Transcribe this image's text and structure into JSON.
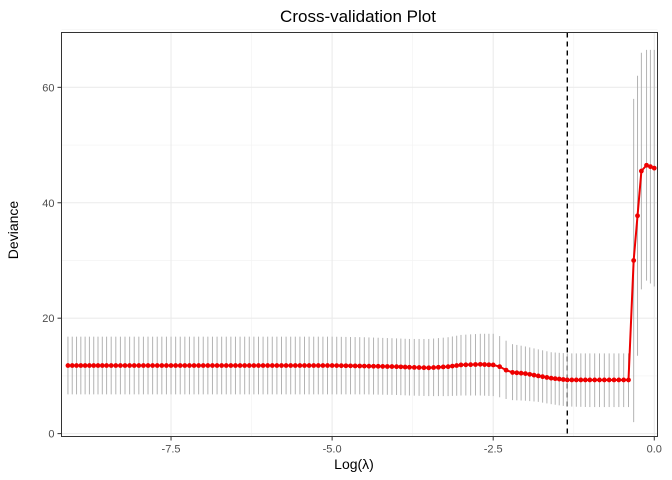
{
  "chart_data": {
    "type": "line",
    "title": "Cross-validation Plot",
    "xlabel": "Log(λ)",
    "ylabel": "Deviance",
    "xlim": [
      -9.2,
      0.05
    ],
    "ylim": [
      -0.5,
      69.5
    ],
    "x_ticks": [
      -7.5,
      -5.0,
      -2.5,
      0.0
    ],
    "x_tick_labels": [
      "-7.5",
      "-5.0",
      "-2.5",
      "0.0"
    ],
    "y_ticks": [
      0,
      20,
      40,
      60
    ],
    "y_tick_labels": [
      "0",
      "20",
      "40",
      "60"
    ],
    "grid": true,
    "vline": {
      "x": -1.35,
      "style": "dashed"
    },
    "series": [
      {
        "color": "#ee0000",
        "error_bar_color": "#b3b3b3",
        "points": [
          {
            "x": -9.1,
            "y": 11.8,
            "lo": 6.8,
            "hi": 16.8
          },
          {
            "x": -8.5,
            "y": 11.8,
            "lo": 6.8,
            "hi": 16.8
          },
          {
            "x": -8.0,
            "y": 11.8,
            "lo": 6.8,
            "hi": 16.8
          },
          {
            "x": -7.5,
            "y": 11.8,
            "lo": 6.8,
            "hi": 16.8
          },
          {
            "x": -7.0,
            "y": 11.8,
            "lo": 6.8,
            "hi": 16.8
          },
          {
            "x": -6.5,
            "y": 11.8,
            "lo": 6.8,
            "hi": 16.8
          },
          {
            "x": -6.0,
            "y": 11.8,
            "lo": 6.8,
            "hi": 16.8
          },
          {
            "x": -5.5,
            "y": 11.8,
            "lo": 6.8,
            "hi": 16.8
          },
          {
            "x": -5.0,
            "y": 11.8,
            "lo": 6.8,
            "hi": 16.8
          },
          {
            "x": -4.5,
            "y": 11.7,
            "lo": 6.8,
            "hi": 16.7
          },
          {
            "x": -4.0,
            "y": 11.6,
            "lo": 6.7,
            "hi": 16.5
          },
          {
            "x": -3.8,
            "y": 11.5,
            "lo": 6.6,
            "hi": 16.4
          },
          {
            "x": -3.5,
            "y": 11.4,
            "lo": 6.5,
            "hi": 16.4
          },
          {
            "x": -3.2,
            "y": 11.6,
            "lo": 6.5,
            "hi": 16.7
          },
          {
            "x": -3.0,
            "y": 11.9,
            "lo": 6.6,
            "hi": 17.1
          },
          {
            "x": -2.7,
            "y": 12.0,
            "lo": 6.6,
            "hi": 17.3
          },
          {
            "x": -2.5,
            "y": 11.9,
            "lo": 6.5,
            "hi": 17.3
          },
          {
            "x": -2.4,
            "y": 11.6,
            "lo": 6.3,
            "hi": 16.9
          },
          {
            "x": -2.3,
            "y": 11.0,
            "lo": 6.0,
            "hi": 16.1
          },
          {
            "x": -2.2,
            "y": 10.6,
            "lo": 5.8,
            "hi": 15.5
          },
          {
            "x": -2.0,
            "y": 10.4,
            "lo": 5.7,
            "hi": 15.1
          },
          {
            "x": -1.8,
            "y": 10.0,
            "lo": 5.5,
            "hi": 14.6
          },
          {
            "x": -1.6,
            "y": 9.6,
            "lo": 5.1,
            "hi": 14.1
          },
          {
            "x": -1.35,
            "y": 9.3,
            "lo": 4.7,
            "hi": 13.9
          },
          {
            "x": -1.0,
            "y": 9.3,
            "lo": 4.6,
            "hi": 13.9
          },
          {
            "x": -0.7,
            "y": 9.3,
            "lo": 4.6,
            "hi": 13.9
          },
          {
            "x": -0.4,
            "y": 9.3,
            "lo": 4.6,
            "hi": 13.9
          },
          {
            "x": -0.32,
            "y": 30.0,
            "lo": 2.0,
            "hi": 58.0
          },
          {
            "x": -0.2,
            "y": 45.5,
            "lo": 25.0,
            "hi": 66.0
          },
          {
            "x": -0.12,
            "y": 46.5,
            "lo": 26.5,
            "hi": 66.5
          },
          {
            "x": 0.0,
            "y": 46.0,
            "lo": 25.5,
            "hi": 66.5
          }
        ]
      }
    ]
  }
}
